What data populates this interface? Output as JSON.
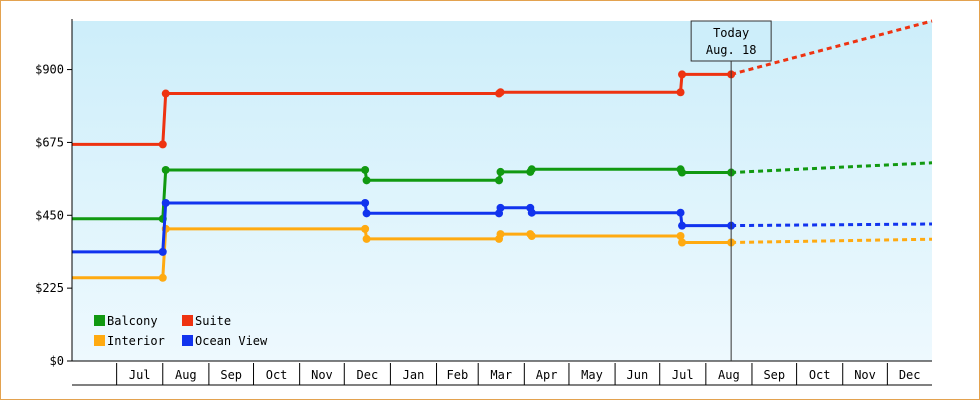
{
  "chart_data": {
    "type": "line",
    "style": "step",
    "title": "",
    "xlabel": "",
    "ylabel": "",
    "ylim": [
      0,
      1050
    ],
    "y_ticks": [
      {
        "value": 0,
        "label": "$0"
      },
      {
        "value": 225,
        "label": "$225"
      },
      {
        "value": 450,
        "label": "$450"
      },
      {
        "value": 675,
        "label": "$675"
      },
      {
        "value": 900,
        "label": "$900"
      }
    ],
    "x_range": [
      "2017-06-01",
      "2018-12-31"
    ],
    "x_months": [
      {
        "date": "2017-06-01",
        "label": ""
      },
      {
        "date": "2017-07-01",
        "label": "Jul"
      },
      {
        "date": "2017-08-01",
        "label": "Aug"
      },
      {
        "date": "2017-09-01",
        "label": "Sep"
      },
      {
        "date": "2017-10-01",
        "label": "Oct"
      },
      {
        "date": "2017-11-01",
        "label": "Nov"
      },
      {
        "date": "2017-12-01",
        "label": "Dec"
      },
      {
        "date": "2018-01-01",
        "label": "Jan"
      },
      {
        "date": "2018-02-01",
        "label": "Feb"
      },
      {
        "date": "2018-03-01",
        "label": "Mar"
      },
      {
        "date": "2018-04-01",
        "label": "Apr"
      },
      {
        "date": "2018-05-01",
        "label": "May"
      },
      {
        "date": "2018-06-01",
        "label": "Jun"
      },
      {
        "date": "2018-07-01",
        "label": "Jul"
      },
      {
        "date": "2018-08-01",
        "label": "Aug"
      },
      {
        "date": "2018-09-01",
        "label": "Sep"
      },
      {
        "date": "2018-10-01",
        "label": "Oct"
      },
      {
        "date": "2018-11-01",
        "label": "Nov"
      },
      {
        "date": "2018-12-01",
        "label": "Dec"
      }
    ],
    "today": {
      "date": "2018-08-18",
      "label_line1": "Today",
      "label_line2": "Aug. 18"
    },
    "grid": false,
    "legend_position": "bottom-left",
    "series": [
      {
        "name": "Balcony",
        "color": "#119911",
        "points": [
          [
            "2017-06-01",
            439
          ],
          [
            "2017-08-01",
            439
          ],
          [
            "2017-08-03",
            590
          ],
          [
            "2017-12-15",
            590
          ],
          [
            "2017-12-16",
            558
          ],
          [
            "2018-03-15",
            558
          ],
          [
            "2018-03-16",
            584
          ],
          [
            "2018-04-05",
            584
          ],
          [
            "2018-04-06",
            592
          ],
          [
            "2018-07-15",
            592
          ],
          [
            "2018-07-16",
            582
          ],
          [
            "2018-08-18",
            582
          ]
        ],
        "forecast": [
          [
            "2018-08-18",
            582
          ],
          [
            "2018-12-31",
            612
          ]
        ]
      },
      {
        "name": "Suite",
        "color": "#ee3311",
        "points": [
          [
            "2017-06-01",
            669
          ],
          [
            "2017-08-01",
            669
          ],
          [
            "2017-08-03",
            826
          ],
          [
            "2018-03-15",
            826
          ],
          [
            "2018-03-16",
            830
          ],
          [
            "2018-07-15",
            830
          ],
          [
            "2018-07-16",
            885
          ],
          [
            "2018-08-18",
            885
          ]
        ],
        "forecast": [
          [
            "2018-08-18",
            885
          ],
          [
            "2018-12-31",
            1050
          ]
        ]
      },
      {
        "name": "Interior",
        "color": "#ffaa11",
        "points": [
          [
            "2017-06-01",
            257
          ],
          [
            "2017-08-01",
            257
          ],
          [
            "2017-08-03",
            408
          ],
          [
            "2017-12-15",
            408
          ],
          [
            "2017-12-16",
            377
          ],
          [
            "2018-03-15",
            377
          ],
          [
            "2018-03-16",
            392
          ],
          [
            "2018-04-05",
            392
          ],
          [
            "2018-04-06",
            386
          ],
          [
            "2018-07-15",
            386
          ],
          [
            "2018-07-16",
            366
          ],
          [
            "2018-08-18",
            366
          ]
        ],
        "forecast": [
          [
            "2018-08-18",
            366
          ],
          [
            "2018-12-31",
            376
          ]
        ]
      },
      {
        "name": "Ocean View",
        "color": "#1133ee",
        "points": [
          [
            "2017-06-01",
            337
          ],
          [
            "2017-08-01",
            337
          ],
          [
            "2017-08-03",
            488
          ],
          [
            "2017-12-15",
            488
          ],
          [
            "2017-12-16",
            456
          ],
          [
            "2018-03-15",
            456
          ],
          [
            "2018-03-16",
            473
          ],
          [
            "2018-04-05",
            473
          ],
          [
            "2018-04-06",
            458
          ],
          [
            "2018-07-15",
            458
          ],
          [
            "2018-07-16",
            418
          ],
          [
            "2018-08-18",
            418
          ]
        ],
        "forecast": [
          [
            "2018-08-18",
            418
          ],
          [
            "2018-12-31",
            423
          ]
        ]
      }
    ],
    "legend_rows": [
      [
        "Balcony",
        "Suite"
      ],
      [
        "Interior",
        "Ocean View"
      ]
    ]
  }
}
